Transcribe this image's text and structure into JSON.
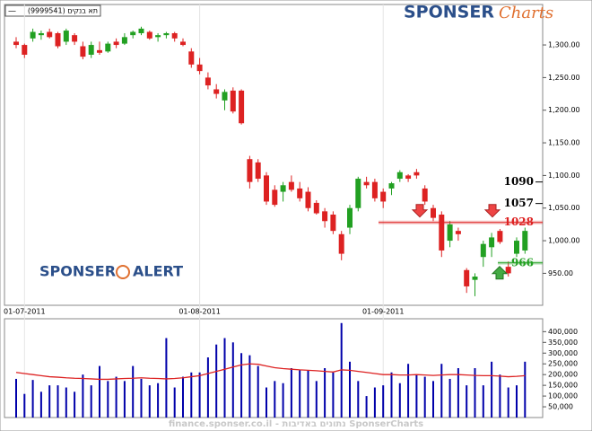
{
  "chart_data": {
    "type": "candlestick",
    "series_name": "תא בנקים (9999541)",
    "legend_symbol": "—",
    "categories": [
      null,
      "01-07-2011",
      null,
      null,
      null,
      null,
      null,
      null,
      null,
      null,
      null,
      null,
      null,
      null,
      null,
      null,
      null,
      null,
      null,
      null,
      null,
      null,
      "01-08-2011",
      null,
      null,
      null,
      null,
      null,
      null,
      null,
      null,
      null,
      null,
      null,
      null,
      null,
      null,
      null,
      null,
      null,
      null,
      null,
      null,
      null,
      "01-09-2011",
      null,
      null,
      null,
      null,
      null,
      null,
      null,
      null,
      null,
      null,
      null,
      null,
      null,
      null,
      null,
      null,
      null
    ],
    "open": [
      1305,
      1300,
      1310,
      1315,
      1320,
      1318,
      1305,
      1315,
      1298,
      1285,
      1292,
      1290,
      1305,
      1302,
      1315,
      1318,
      1320,
      1312,
      1315,
      1318,
      1305,
      1290,
      1270,
      1250,
      1232,
      1215,
      1230,
      1230,
      1125,
      1120,
      1100,
      1078,
      1075,
      1090,
      1080,
      1075,
      1058,
      1045,
      1040,
      1010,
      1020,
      1050,
      1090,
      1090,
      1075,
      1080,
      1095,
      1100,
      1105,
      1080,
      1050,
      1040,
      1000,
      1015,
      955,
      940,
      975,
      990,
      1015,
      960,
      980,
      985
    ],
    "high": [
      1312,
      1302,
      1325,
      1322,
      1325,
      1320,
      1325,
      1318,
      1305,
      1305,
      1305,
      1305,
      1310,
      1318,
      1322,
      1328,
      1322,
      1318,
      1320,
      1320,
      1310,
      1295,
      1280,
      1258,
      1240,
      1232,
      1235,
      1232,
      1130,
      1125,
      1105,
      1085,
      1090,
      1100,
      1090,
      1082,
      1062,
      1050,
      1045,
      1015,
      1055,
      1098,
      1098,
      1095,
      1080,
      1090,
      1108,
      1102,
      1110,
      1085,
      1055,
      1045,
      1030,
      1020,
      958,
      950,
      1000,
      1012,
      1018,
      968,
      1005,
      1020
    ],
    "low": [
      1295,
      1280,
      1305,
      1308,
      1310,
      1295,
      1300,
      1300,
      1278,
      1280,
      1285,
      1288,
      1295,
      1300,
      1310,
      1315,
      1308,
      1305,
      1310,
      1305,
      1298,
      1265,
      1255,
      1232,
      1218,
      1200,
      1195,
      1178,
      1080,
      1090,
      1055,
      1052,
      1060,
      1075,
      1060,
      1045,
      1040,
      1020,
      1010,
      970,
      1010,
      1045,
      1080,
      1060,
      1050,
      1070,
      1090,
      1090,
      1095,
      1055,
      1030,
      975,
      990,
      1000,
      920,
      915,
      960,
      975,
      995,
      945,
      975,
      980
    ],
    "close": [
      1300,
      1285,
      1320,
      1318,
      1312,
      1298,
      1322,
      1305,
      1282,
      1300,
      1288,
      1302,
      1300,
      1312,
      1320,
      1325,
      1310,
      1315,
      1318,
      1310,
      1300,
      1270,
      1260,
      1238,
      1225,
      1228,
      1198,
      1180,
      1090,
      1095,
      1060,
      1055,
      1085,
      1078,
      1065,
      1050,
      1042,
      1030,
      1015,
      980,
      1050,
      1095,
      1085,
      1065,
      1060,
      1088,
      1105,
      1095,
      1100,
      1060,
      1035,
      985,
      1025,
      1010,
      930,
      945,
      995,
      1005,
      998,
      950,
      1000,
      1015
    ],
    "up_color": "#22a022",
    "down_color": "#dd2222",
    "ylim": [
      901,
      1362
    ],
    "yticks": [
      {
        "value": 950,
        "label": "950.00"
      },
      {
        "value": 1000,
        "label": "1,000.00"
      },
      {
        "value": 1050,
        "label": "1,050.00"
      },
      {
        "value": 1100,
        "label": "1,100.00"
      },
      {
        "value": 1150,
        "label": "1,150.00"
      },
      {
        "value": 1200,
        "label": "1,200.00"
      },
      {
        "value": 1250,
        "label": "1,250.00"
      },
      {
        "value": 1300,
        "label": "1,300.00"
      }
    ],
    "levels": [
      {
        "value": 1090,
        "color": "#000000",
        "line": false
      },
      {
        "value": 1057,
        "color": "#000000",
        "line": false
      },
      {
        "value": 1028,
        "color": "#dd2222",
        "line": true
      },
      {
        "value": 966,
        "color": "#22a022",
        "line": true
      }
    ],
    "volume": {
      "color": "#0000aa",
      "values": [
        180000,
        110000,
        175000,
        120000,
        150000,
        150000,
        140000,
        120000,
        200000,
        150000,
        240000,
        170000,
        190000,
        170000,
        240000,
        180000,
        150000,
        160000,
        370000,
        140000,
        190000,
        210000,
        210000,
        280000,
        340000,
        370000,
        350000,
        300000,
        290000,
        240000,
        140000,
        170000,
        160000,
        230000,
        220000,
        220000,
        170000,
        230000,
        210000,
        440000,
        260000,
        170000,
        100000,
        140000,
        150000,
        210000,
        160000,
        250000,
        200000,
        190000,
        170000,
        250000,
        180000,
        230000,
        150000,
        230000,
        150000,
        260000,
        200000,
        140000,
        150000,
        260000
      ],
      "ylim": [
        0,
        460000
      ],
      "yticks": [
        {
          "value": 50000,
          "label": "50,000"
        },
        {
          "value": 100000,
          "label": "100,000"
        },
        {
          "value": 150000,
          "label": "150,000"
        },
        {
          "value": 200000,
          "label": "200,000"
        },
        {
          "value": 250000,
          "label": "250,000"
        },
        {
          "value": 300000,
          "label": "300,000"
        },
        {
          "value": 350000,
          "label": "350,000"
        },
        {
          "value": 400000,
          "label": "400,000"
        }
      ]
    },
    "volume_average": {
      "color": "#dd2222",
      "values": [
        210000,
        205000,
        200000,
        195000,
        190000,
        188000,
        185000,
        183000,
        182000,
        180000,
        178000,
        178000,
        180000,
        182000,
        183000,
        185000,
        183000,
        182000,
        180000,
        182000,
        185000,
        190000,
        195000,
        205000,
        215000,
        225000,
        235000,
        245000,
        250000,
        248000,
        240000,
        232000,
        228000,
        225000,
        222000,
        220000,
        218000,
        215000,
        212000,
        222000,
        220000,
        215000,
        210000,
        205000,
        200000,
        200000,
        198000,
        198000,
        200000,
        198000,
        196000,
        198000,
        200000,
        200000,
        198000,
        196000,
        195000,
        195000,
        193000,
        190000,
        192000,
        195000
      ]
    },
    "footer": "finance.sponser.co.il - נתונים באדיבות SponserCharts"
  },
  "branding": {
    "top_logo": "SPONSER",
    "top_logo_suffix": "Charts",
    "alert_logo": "SPONSER",
    "alert_logo_suffix": "ALERT"
  }
}
